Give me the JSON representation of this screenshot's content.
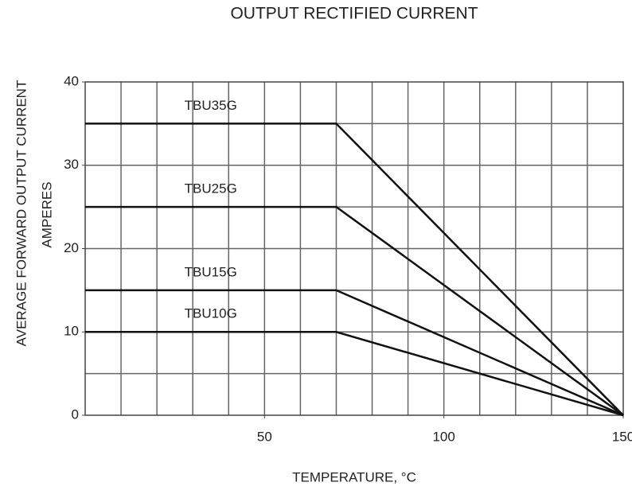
{
  "chart_data": {
    "type": "line",
    "title": "OUTPUT RECTIFIED CURRENT",
    "y_label": [
      "AVERAGE FORWARD OUTPUT CURRENT",
      "AMPERES"
    ],
    "x_label": "TEMPERATURE, °C",
    "x": [
      0,
      70,
      150
    ],
    "series": [
      {
        "name": "TBU35G",
        "color": "#111111",
        "values": [
          35,
          35,
          0
        ]
      },
      {
        "name": "TBU25G",
        "color": "#111111",
        "values": [
          25,
          25,
          0
        ]
      },
      {
        "name": "TBU15G",
        "color": "#111111",
        "values": [
          15,
          15,
          0
        ]
      },
      {
        "name": "TBU10G",
        "color": "#111111",
        "values": [
          10,
          10,
          0
        ]
      }
    ],
    "xlim": [
      0,
      150
    ],
    "xticks": [
      50,
      100,
      150
    ],
    "xgrid": [
      10,
      20,
      30,
      40,
      50,
      60,
      70,
      80,
      90,
      100,
      110,
      120,
      130,
      140
    ],
    "ylim": [
      0,
      40
    ],
    "yticks": [
      0,
      10,
      20,
      30,
      40
    ],
    "ygrid": [
      5,
      10,
      15,
      20,
      25,
      30,
      35
    ],
    "grid": true
  }
}
